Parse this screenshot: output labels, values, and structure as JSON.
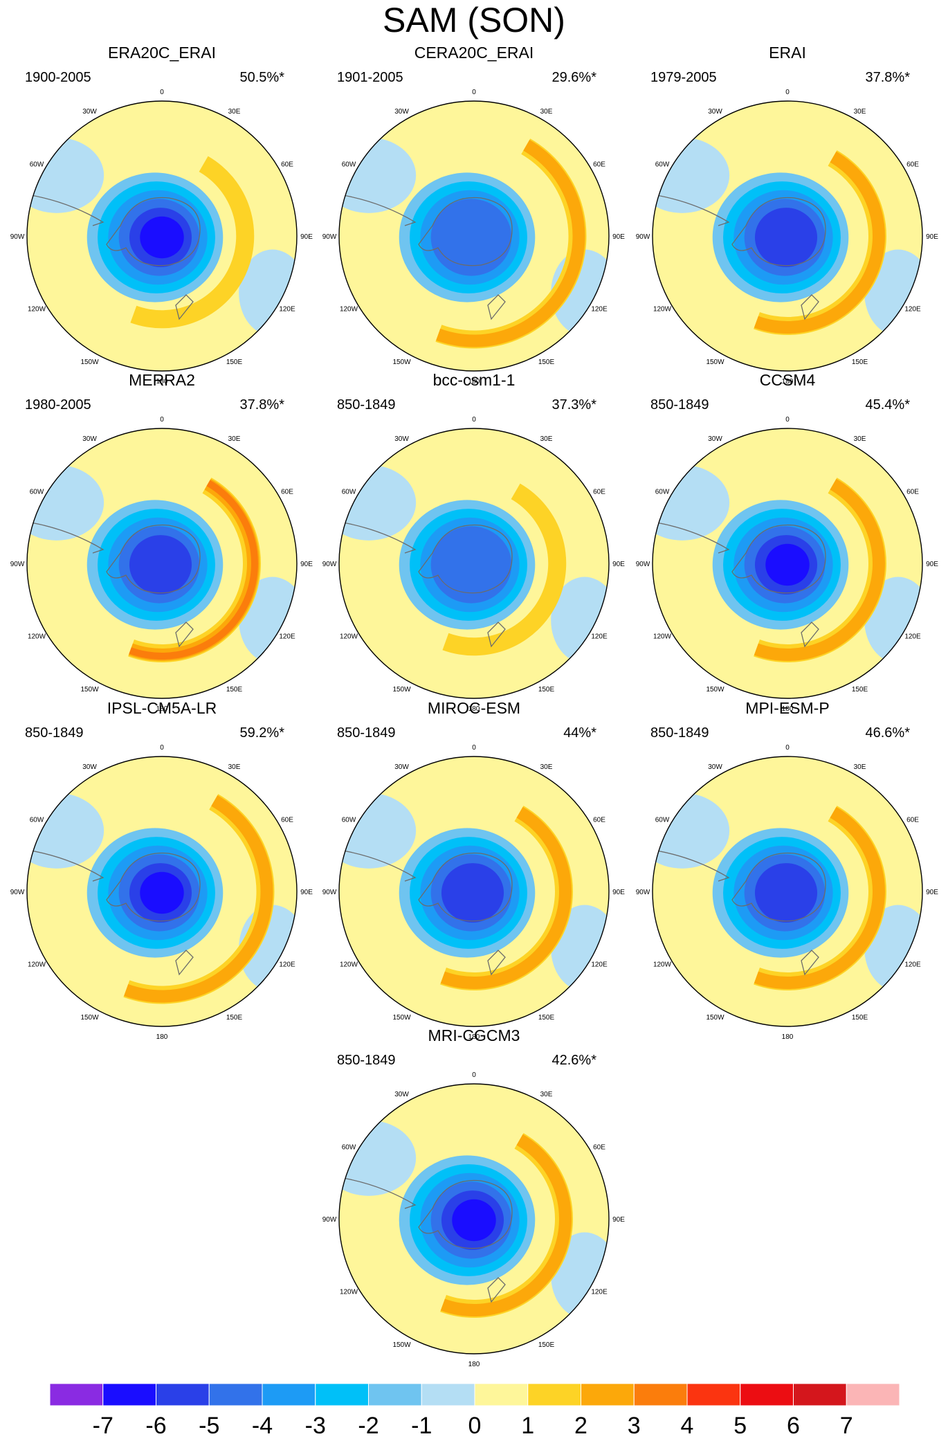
{
  "title": "SAM (SON)",
  "panels": [
    {
      "name": "ERA20C_ERAI",
      "period": "1900-2005",
      "variance": "50.5%*"
    },
    {
      "name": "CERA20C_ERAI",
      "period": "1901-2005",
      "variance": "29.6%*"
    },
    {
      "name": "ERAI",
      "period": "1979-2005",
      "variance": "37.8%*"
    },
    {
      "name": "MERRA2",
      "period": "1980-2005",
      "variance": "37.8%*"
    },
    {
      "name": "bcc-csm1-1",
      "period": "850-1849",
      "variance": "37.3%*"
    },
    {
      "name": "CCSM4",
      "period": "850-1849",
      "variance": "45.4%*"
    },
    {
      "name": "IPSL-CM5A-LR",
      "period": "850-1849",
      "variance": "59.2%*"
    },
    {
      "name": "MIROC-ESM",
      "period": "850-1849",
      "variance": "44%*"
    },
    {
      "name": "MPI-ESM-P",
      "period": "850-1849",
      "variance": "46.6%*"
    },
    {
      "name": "MRI-CGCM3",
      "period": "850-1849",
      "variance": "42.6%*"
    }
  ],
  "longitude_labels": [
    "0",
    "30E",
    "60E",
    "90E",
    "120E",
    "150E",
    "180",
    "150W",
    "120W",
    "90W",
    "60W",
    "30W"
  ],
  "colorbar": {
    "labels": [
      "-7",
      "-6",
      "-5",
      "-4",
      "-3",
      "-2",
      "-1",
      "0",
      "1",
      "2",
      "3",
      "4",
      "5",
      "6",
      "7"
    ],
    "colors": [
      "#8a2be2",
      "#1a0dff",
      "#2a40e8",
      "#3272ea",
      "#1d9bf5",
      "#00c0f8",
      "#6fc4f0",
      "#b4def4",
      "#fef69a",
      "#fdd326",
      "#fca80a",
      "#fb7d0c",
      "#fb3410",
      "#ec0d12",
      "#d4161c",
      "#fbb5b6"
    ]
  },
  "patterns": {
    "ERA20C_ERAI": {
      "negLevels": [
        -1,
        -2,
        -3,
        -4,
        -5,
        -6
      ],
      "posMax": 2,
      "posGap": 0.55,
      "posLevels": [
        2
      ]
    },
    "CERA20C_ERAI": {
      "negLevels": [
        -1,
        -2,
        -3,
        -4
      ],
      "posMax": 3,
      "posGap": 0.7,
      "posLevels": [
        2,
        3
      ]
    },
    "ERAI": {
      "negLevels": [
        -1,
        -2,
        -3,
        -4,
        -5
      ],
      "posMax": 3,
      "posGap": 0.6,
      "posLevels": [
        2,
        3
      ]
    },
    "MERRA2": {
      "negLevels": [
        -1,
        -2,
        -3,
        -4,
        -5
      ],
      "posMax": 4,
      "posGap": 0.6,
      "posLevels": [
        2,
        3,
        4
      ]
    },
    "bcc-csm1-1": {
      "negLevels": [
        -1,
        -2,
        -3,
        -4
      ],
      "posMax": 2,
      "posGap": 0.55,
      "posLevels": [
        2
      ]
    },
    "CCSM4": {
      "negLevels": [
        -1,
        -2,
        -3,
        -4,
        -5,
        -6
      ],
      "posMax": 3,
      "posGap": 0.6,
      "posLevels": [
        2,
        3
      ]
    },
    "IPSL-CM5A-LR": {
      "negLevels": [
        -1,
        -2,
        -3,
        -4,
        -5,
        -6
      ],
      "posMax": 3,
      "posGap": 0.7,
      "posLevels": [
        2,
        3
      ]
    },
    "MIROC-ESM": {
      "negLevels": [
        -1,
        -2,
        -3,
        -4,
        -5
      ],
      "posMax": 3,
      "posGap": 0.6,
      "posLevels": [
        2,
        3
      ]
    },
    "MPI-ESM-P": {
      "negLevels": [
        -1,
        -2,
        -3,
        -4,
        -5
      ],
      "posMax": 3,
      "posGap": 0.6,
      "posLevels": [
        2,
        3
      ]
    },
    "MRI-CGCM3": {
      "negLevels": [
        -1,
        -2,
        -3,
        -4,
        -5,
        -6
      ],
      "posMax": 3,
      "posGap": 0.6,
      "posLevels": [
        2,
        3
      ]
    }
  }
}
